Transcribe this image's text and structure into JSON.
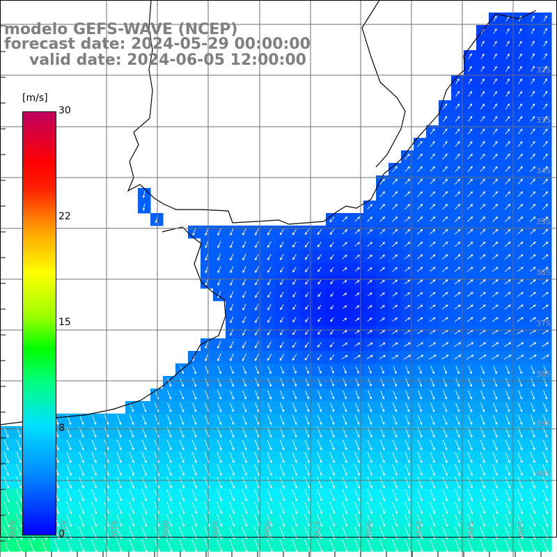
{
  "title": {
    "line1": "modelo GEFS-WAVE (NCEP)",
    "line2": "forecast date: 2024-05-29 00:00:00",
    "line3": "valid date: 2024-06-05 12:00:00"
  },
  "colorbar": {
    "unit": "[m/s]",
    "min": 0,
    "max": 30,
    "ticks": [
      "30",
      "22",
      "15",
      "8",
      "0"
    ],
    "colors": {
      "low": "#0000ff",
      "mid": "#00ffff",
      "high": "#c00060"
    }
  },
  "map": {
    "lat_labels": [
      "32S",
      "33S",
      "34S",
      "35S",
      "36S",
      "37S",
      "38S",
      "39S",
      "40S"
    ],
    "lon_labels": [
      "63W",
      "62W",
      "61W",
      "60W",
      "59W",
      "58W",
      "57W",
      "56W",
      "55W",
      "54W",
      "53W",
      "52W",
      "51W"
    ],
    "land_color": "#ffffff",
    "coast_color": "#000000",
    "grid_color": "#6e6e6e"
  }
}
